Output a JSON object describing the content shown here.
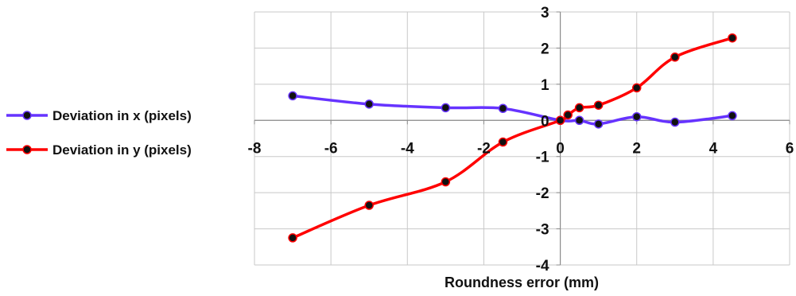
{
  "chart_data": {
    "type": "scatter",
    "title": "",
    "xlabel": "Roundness error (mm)",
    "ylabel": "",
    "xlim": [
      -8,
      6
    ],
    "ylim": [
      -4,
      3
    ],
    "xticks": [
      -8,
      -6,
      -4,
      -2,
      0,
      2,
      4,
      6
    ],
    "yticks": [
      3,
      2,
      1,
      0,
      -1,
      -2,
      -3,
      -4
    ],
    "xtick_labels": [
      "-8",
      "-6",
      "-4",
      "-2",
      "0",
      "2",
      "4",
      "6"
    ],
    "ytick_labels": [
      "3",
      "2",
      "1",
      "0",
      "-1",
      "-2",
      "-3",
      "-4"
    ],
    "grid": true,
    "legend_position": "left",
    "series": [
      {
        "name": "Deviation in x (pixels)",
        "color": "#6633ff",
        "x": [
          -7,
          -5,
          -3,
          -1.5,
          0,
          0.5,
          1,
          2,
          3,
          4.5
        ],
        "y": [
          0.68,
          0.45,
          0.35,
          0.33,
          0.0,
          0.0,
          -0.1,
          0.1,
          -0.05,
          0.13
        ]
      },
      {
        "name": "Deviation in y (pixels)",
        "color": "#ff0000",
        "x": [
          -7,
          -5,
          -3,
          -1.5,
          0,
          0.2,
          0.5,
          1,
          2,
          3,
          4.5
        ],
        "y": [
          -3.25,
          -2.35,
          -1.7,
          -0.6,
          0.0,
          0.15,
          0.35,
          0.42,
          0.9,
          1.75,
          2.28
        ]
      }
    ]
  }
}
